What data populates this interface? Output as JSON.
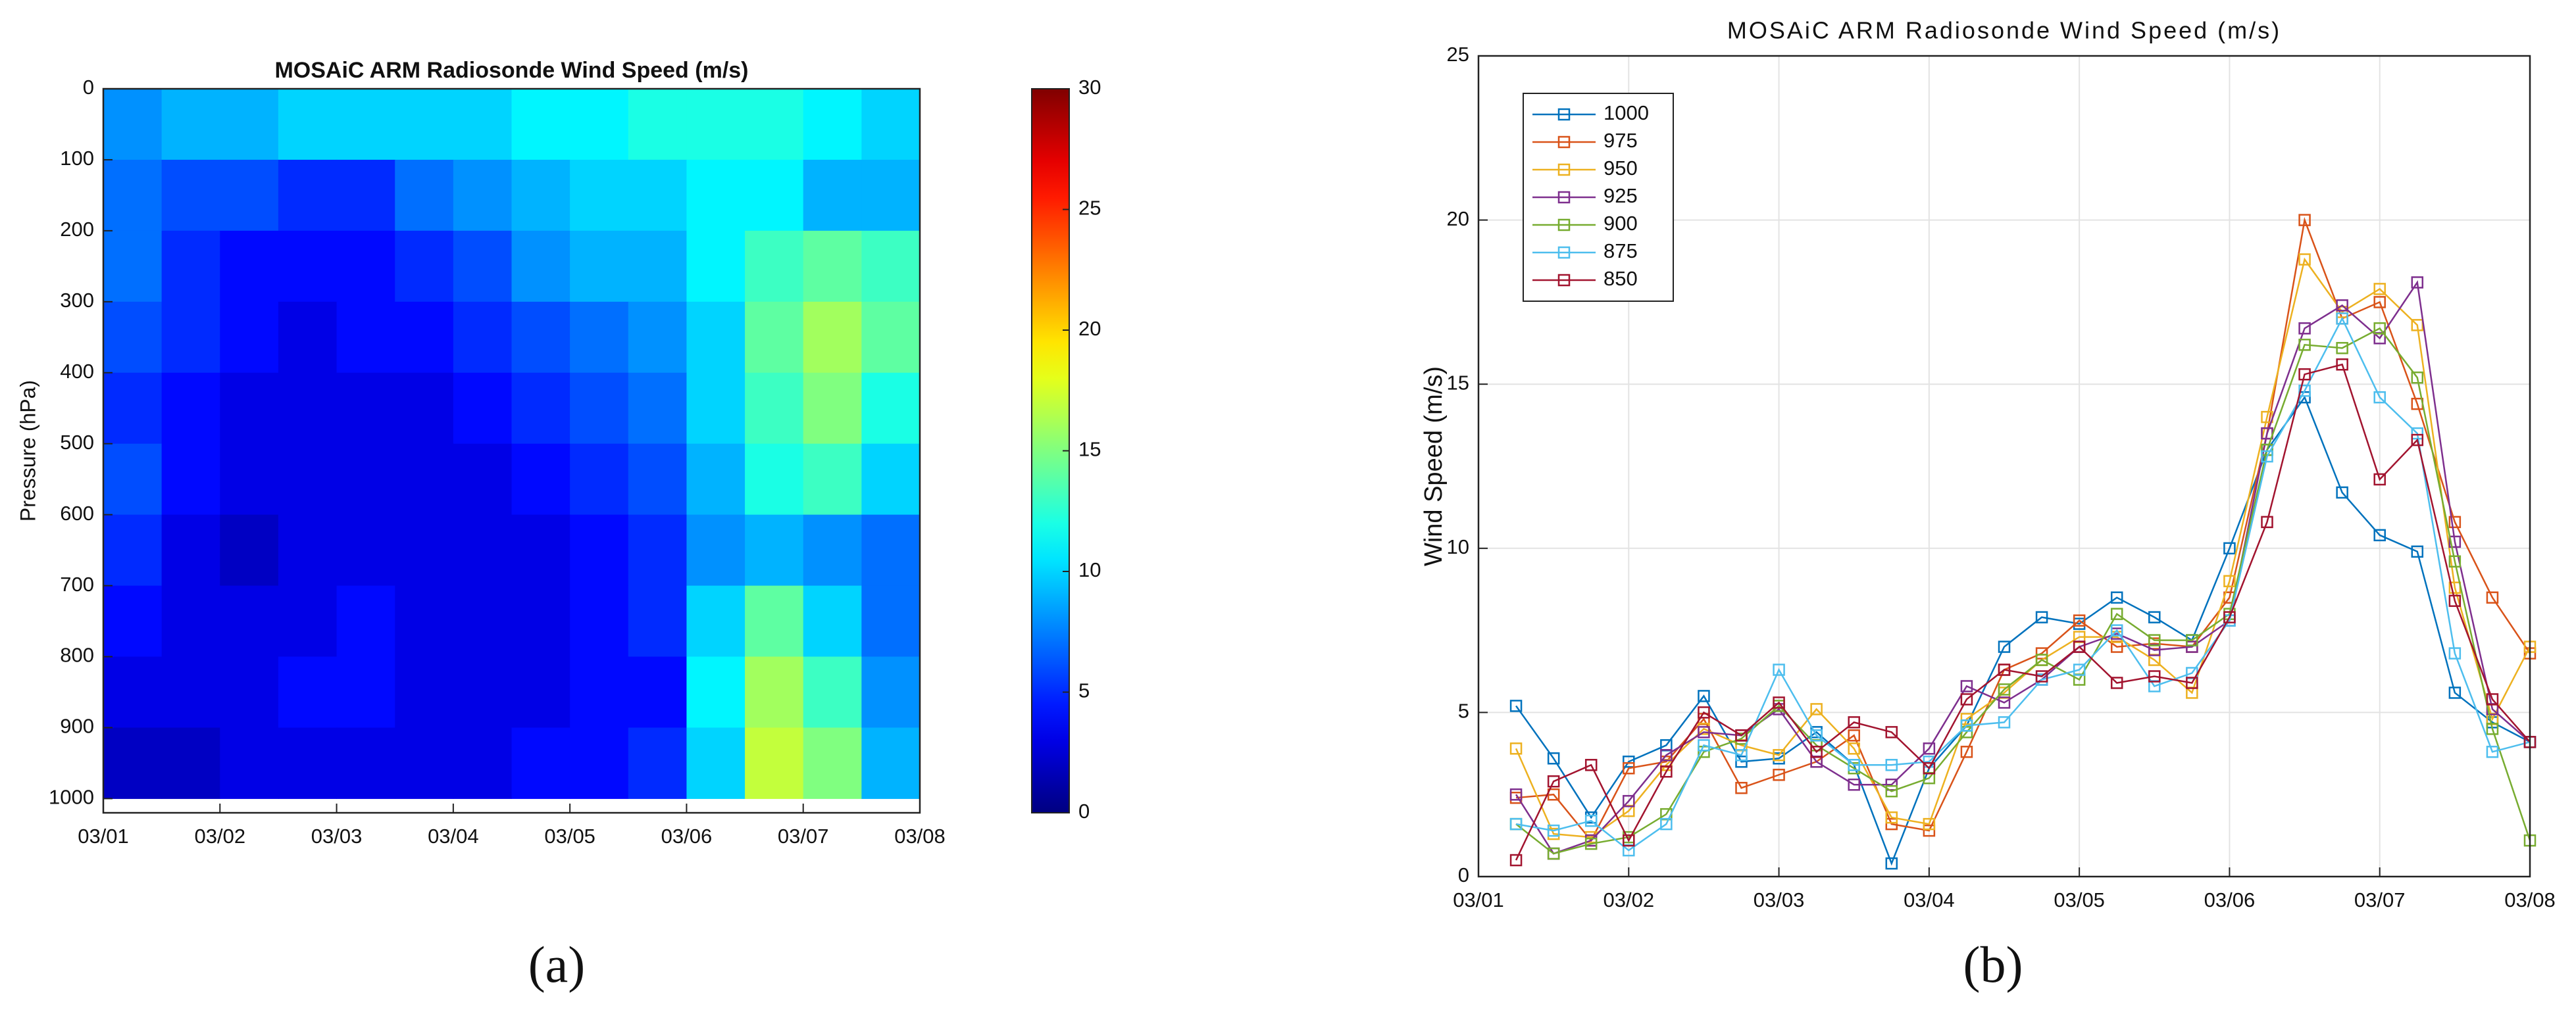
{
  "chart_data": [
    {
      "type": "heatmap",
      "title": "MOSAiC ARM Radiosonde Wind Speed (m/s)",
      "ylabel": "Pressure (hPa)",
      "panel_label": "(a)",
      "x": [
        0.25,
        0.75,
        1.25,
        1.75,
        2.25,
        2.75,
        3.25,
        3.75,
        4.25,
        4.75,
        5.25,
        5.75,
        6.25,
        6.75
      ],
      "y": [
        50,
        150,
        250,
        350,
        450,
        550,
        650,
        750,
        850,
        950
      ],
      "z": [
        [
          8,
          9,
          9,
          10,
          10,
          10,
          10,
          11,
          11,
          12,
          12,
          12,
          11,
          10
        ],
        [
          7,
          6,
          6,
          5,
          5,
          7,
          8,
          9,
          10,
          10,
          11,
          11,
          9,
          9
        ],
        [
          7,
          5,
          4,
          4,
          4,
          5,
          6,
          8,
          9,
          9,
          11,
          13,
          14,
          13
        ],
        [
          6,
          5,
          4,
          3,
          4,
          4,
          5,
          6,
          7,
          8,
          10,
          14,
          16,
          14
        ],
        [
          5,
          4,
          3,
          3,
          3,
          3,
          4,
          5,
          6,
          7,
          10,
          13,
          15,
          12
        ],
        [
          6,
          4,
          3,
          3,
          3,
          3,
          3,
          4,
          5,
          6,
          9,
          12,
          13,
          10
        ],
        [
          5,
          3,
          2,
          3,
          3,
          3,
          3,
          3,
          4,
          5,
          8,
          9,
          8,
          7
        ],
        [
          4,
          3,
          3,
          3,
          4,
          3,
          3,
          3,
          4,
          5,
          10,
          14,
          10,
          7
        ],
        [
          3,
          3,
          3,
          4,
          4,
          3,
          3,
          3,
          4,
          4,
          11,
          16,
          13,
          8
        ],
        [
          2,
          2,
          3,
          3,
          3,
          3,
          3,
          4,
          4,
          5,
          10,
          17,
          15,
          9
        ]
      ],
      "colormap": "jet",
      "xlim": [
        0,
        7
      ],
      "xticks": [
        {
          "value": 0,
          "label": "03/01"
        },
        {
          "value": 1,
          "label": "03/02"
        },
        {
          "value": 2,
          "label": "03/03"
        },
        {
          "value": 3,
          "label": "03/04"
        },
        {
          "value": 4,
          "label": "03/05"
        },
        {
          "value": 5,
          "label": "03/06"
        },
        {
          "value": 6,
          "label": "03/07"
        },
        {
          "value": 7,
          "label": "03/08"
        }
      ],
      "ylim": [
        0,
        1020
      ],
      "y_reversed": true,
      "yticks": [
        0,
        100,
        200,
        300,
        400,
        500,
        600,
        700,
        800,
        900,
        1000
      ],
      "clim": [
        0,
        30
      ],
      "cticks": [
        0,
        5,
        10,
        15,
        20,
        25,
        30
      ]
    },
    {
      "type": "line",
      "title": "MOSAiC ARM Radiosonde Wind Speed (m/s)",
      "ylabel": "Wind Speed (m/s)",
      "panel_label": "(b)",
      "x": [
        0.25,
        0.5,
        0.75,
        1.0,
        1.25,
        1.5,
        1.75,
        2.0,
        2.25,
        2.5,
        2.75,
        3.0,
        3.25,
        3.5,
        3.75,
        4.0,
        4.25,
        4.5,
        4.75,
        5.0,
        5.25,
        5.5,
        5.75,
        6.0,
        6.25,
        6.5,
        6.75,
        7.0
      ],
      "series": [
        {
          "name": "1000",
          "color": "#0072bd",
          "values": [
            5.2,
            3.6,
            1.8,
            3.5,
            4.0,
            5.5,
            3.5,
            3.6,
            4.4,
            3.4,
            0.4,
            3.3,
            4.6,
            7.0,
            7.9,
            7.7,
            8.5,
            7.9,
            7.2,
            10.0,
            13.0,
            14.6,
            11.7,
            10.4,
            9.9,
            5.6,
            4.7,
            4.1
          ]
        },
        {
          "name": "975",
          "color": "#d95319",
          "values": [
            2.4,
            2.5,
            1.1,
            3.3,
            3.5,
            4.8,
            2.7,
            3.1,
            3.5,
            4.3,
            1.6,
            1.4,
            3.8,
            6.3,
            6.8,
            7.8,
            7.0,
            7.1,
            7.0,
            8.5,
            13.5,
            20.0,
            17.0,
            17.5,
            14.4,
            10.8,
            8.5,
            6.8
          ]
        },
        {
          "name": "950",
          "color": "#edb120",
          "values": [
            3.9,
            1.3,
            1.2,
            2.0,
            3.4,
            4.5,
            4.0,
            3.7,
            5.1,
            3.9,
            1.8,
            1.6,
            4.8,
            5.6,
            6.6,
            7.3,
            7.3,
            6.6,
            5.6,
            9.0,
            14.0,
            18.8,
            17.2,
            17.9,
            16.8,
            8.8,
            4.8,
            7.0
          ]
        },
        {
          "name": "925",
          "color": "#7e2f8e",
          "values": [
            2.5,
            0.7,
            1.1,
            2.3,
            3.7,
            4.4,
            4.3,
            5.1,
            3.5,
            2.8,
            2.8,
            3.9,
            5.8,
            5.3,
            6.0,
            7.0,
            7.4,
            6.9,
            7.0,
            7.8,
            13.5,
            16.7,
            17.4,
            16.4,
            18.1,
            10.2,
            5.1,
            4.1
          ]
        },
        {
          "name": "900",
          "color": "#77ac30",
          "values": [
            1.6,
            0.7,
            1.0,
            1.2,
            1.9,
            3.8,
            4.2,
            5.2,
            4.0,
            3.3,
            2.6,
            3.0,
            4.4,
            5.7,
            6.6,
            6.0,
            8.0,
            7.2,
            7.2,
            8.0,
            13.0,
            16.2,
            16.1,
            16.7,
            15.2,
            9.6,
            4.5,
            1.1
          ]
        },
        {
          "name": "875",
          "color": "#4dbeee",
          "values": [
            1.6,
            1.4,
            1.7,
            0.8,
            1.6,
            4.0,
            3.7,
            6.3,
            4.3,
            3.4,
            3.4,
            3.5,
            4.6,
            4.7,
            6.0,
            6.3,
            7.5,
            5.8,
            6.2,
            7.8,
            12.8,
            14.8,
            17.0,
            14.6,
            13.5,
            6.8,
            3.8,
            4.1
          ]
        },
        {
          "name": "850",
          "color": "#a2142f",
          "values": [
            0.5,
            2.9,
            3.4,
            1.1,
            3.2,
            5.0,
            4.3,
            5.3,
            3.8,
            4.7,
            4.4,
            3.3,
            5.4,
            6.3,
            6.1,
            7.0,
            5.9,
            6.1,
            5.9,
            7.9,
            10.8,
            15.3,
            15.6,
            12.1,
            13.3,
            8.4,
            5.4,
            4.1
          ]
        }
      ],
      "xlim": [
        0,
        7
      ],
      "xticks": [
        {
          "value": 0,
          "label": "03/01"
        },
        {
          "value": 1,
          "label": "03/02"
        },
        {
          "value": 2,
          "label": "03/03"
        },
        {
          "value": 3,
          "label": "03/04"
        },
        {
          "value": 4,
          "label": "03/05"
        },
        {
          "value": 5,
          "label": "03/06"
        },
        {
          "value": 6,
          "label": "03/07"
        },
        {
          "value": 7,
          "label": "03/08"
        }
      ],
      "ylim": [
        0,
        25
      ],
      "yticks": [
        0,
        5,
        10,
        15,
        20,
        25
      ],
      "grid": true,
      "legend": "upper left"
    }
  ]
}
